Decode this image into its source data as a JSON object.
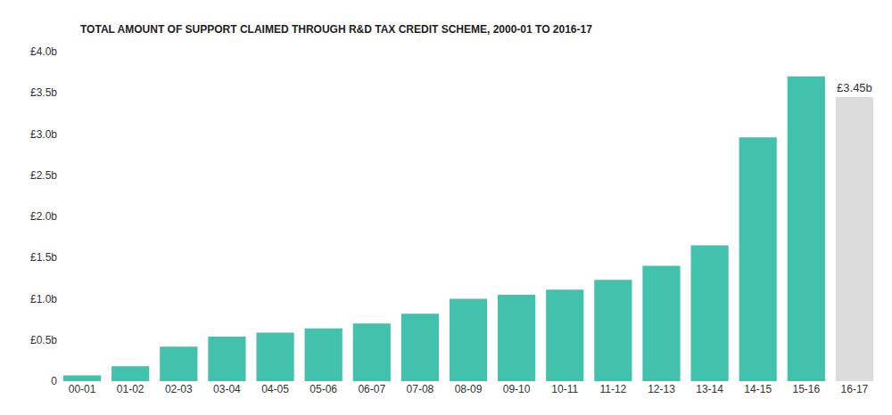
{
  "chart_data": {
    "type": "bar",
    "title": "TOTAL AMOUNT OF SUPPORT CLAIMED THROUGH R&D TAX CREDIT SCHEME, 2000-01 TO 2016-17",
    "categories": [
      "00-01",
      "01-02",
      "02-03",
      "03-04",
      "04-05",
      "05-06",
      "06-07",
      "07-08",
      "08-09",
      "09-10",
      "10-11",
      "11-12",
      "12-13",
      "13-14",
      "14-15",
      "15-16",
      "16-17"
    ],
    "values": [
      0.07,
      0.18,
      0.42,
      0.54,
      0.59,
      0.64,
      0.7,
      0.82,
      1.0,
      1.05,
      1.11,
      1.23,
      1.4,
      1.65,
      2.96,
      3.7,
      3.45
    ],
    "value_labels": [
      null,
      null,
      null,
      null,
      null,
      null,
      null,
      null,
      null,
      null,
      null,
      null,
      null,
      null,
      null,
      null,
      "£3.45b"
    ],
    "data_labels": true,
    "colors": [
      "#42c2ac",
      "#42c2ac",
      "#42c2ac",
      "#42c2ac",
      "#42c2ac",
      "#42c2ac",
      "#42c2ac",
      "#42c2ac",
      "#42c2ac",
      "#42c2ac",
      "#42c2ac",
      "#42c2ac",
      "#42c2ac",
      "#42c2ac",
      "#42c2ac",
      "#42c2ac",
      "#dcdcdc"
    ],
    "ylim": [
      0,
      4
    ],
    "yticks": [
      0,
      {
        "value": 0.5,
        "label": "£0.5b"
      },
      {
        "value": 1,
        "label": "£1.0b"
      },
      {
        "value": 1.5,
        "label": "£1.5b"
      },
      {
        "value": 2,
        "label": "£2.0b"
      },
      {
        "value": 2.5,
        "label": "£2.5b"
      },
      {
        "value": 3,
        "label": "£3.0b"
      },
      {
        "value": 3.5,
        "label": "£3.5b"
      },
      {
        "value": 4,
        "label": "£4.0b"
      }
    ],
    "grid": false
  }
}
